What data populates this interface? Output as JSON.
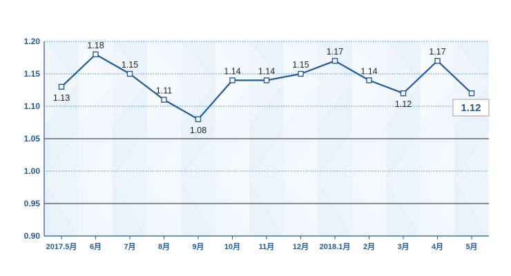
{
  "chart_data": {
    "type": "line",
    "categories": [
      "2017.5月",
      "6月",
      "7月",
      "8月",
      "9月",
      "10月",
      "11月",
      "12月",
      "2018.1月",
      "2月",
      "3月",
      "4月",
      "5月"
    ],
    "series": [
      {
        "values": [
          1.13,
          1.18,
          1.15,
          1.11,
          1.08,
          1.14,
          1.14,
          1.15,
          1.17,
          1.14,
          1.12,
          1.17,
          1.12
        ]
      }
    ],
    "data_labels": [
      "1.13",
      "1.18",
      "1.15",
      "1.11",
      "1.08",
      "1.14",
      "1.14",
      "1.15",
      "1.17",
      "1.14",
      "1.12",
      "1.17",
      "1.12"
    ],
    "ylim": [
      0.9,
      1.2
    ],
    "yticks": [
      "0.90",
      "0.95",
      "1.00",
      "1.05",
      "1.10",
      "1.15",
      "1.20"
    ],
    "grid": true,
    "legend": "none",
    "title": "",
    "xlabel": "",
    "ylabel": "",
    "colors": {
      "line": "#1f5a9e",
      "marker_fill": "#ffffff",
      "axis_text": "#1f5a9e",
      "grid_dotted": "#2a8fc0",
      "grid_solid": "#222222",
      "band_fill": "#d6e8f6"
    }
  }
}
